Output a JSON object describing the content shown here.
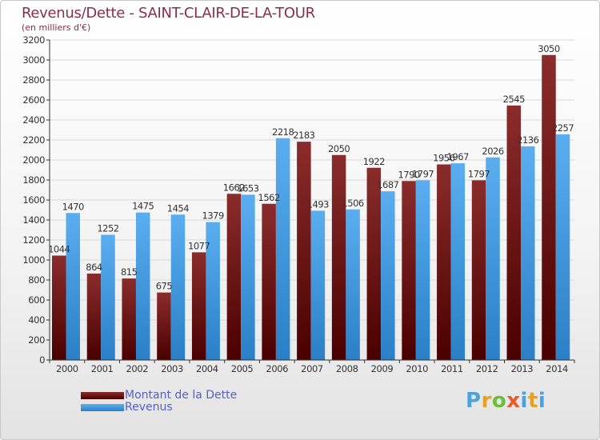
{
  "header": {
    "title": "Revenus/Dette - SAINT-CLAIR-DE-LA-TOUR",
    "subtitle": "(en milliers d'€)"
  },
  "legend": {
    "items": [
      {
        "label": "Montant de la Dette",
        "color": "#7a1a1e"
      },
      {
        "label": "Revenus",
        "color": "#3d8fd6"
      }
    ]
  },
  "logo": {
    "text": "Proxiti"
  },
  "colors": {
    "dette_top": "#8b2c2c",
    "dette_bottom": "#4a0000",
    "revenus_top": "#5aaef0",
    "revenus_bottom": "#2a7fc6",
    "grid": "#d9d9d9",
    "title": "#8a2d4a"
  },
  "chart_data": {
    "type": "bar",
    "categories": [
      "2000",
      "2001",
      "2002",
      "2003",
      "2004",
      "2005",
      "2006",
      "2007",
      "2008",
      "2009",
      "2010",
      "2011",
      "2012",
      "2013",
      "2014"
    ],
    "series": [
      {
        "name": "Montant de la Dette",
        "values": [
          1044,
          864,
          815,
          675,
          1077,
          1662,
          1562,
          2183,
          2050,
          1922,
          1790,
          1956,
          1797,
          2545,
          3050
        ]
      },
      {
        "name": "Revenus",
        "values": [
          1470,
          1252,
          1475,
          1454,
          1379,
          1653,
          2218,
          1493,
          1506,
          1687,
          1797,
          1967,
          2026,
          2136,
          2257
        ]
      }
    ],
    "data_labels": {
      "Montant de la Dette": [
        "1044",
        "864",
        "815",
        "675",
        "1077",
        "1662",
        "1562",
        "2183",
        "2050",
        "1922",
        "1790",
        "1956",
        "1797",
        "2545",
        "3050"
      ],
      "Revenus": [
        "1470",
        "1252",
        "1475",
        "1454",
        "1379",
        "1653",
        "2218",
        "1493",
        "1506",
        "1687",
        "1797",
        "1967",
        "2026",
        "2136",
        "2257"
      ]
    },
    "title": "Revenus/Dette - SAINT-CLAIR-DE-LA-TOUR",
    "subtitle": "(en milliers d'€)",
    "xlabel": "",
    "ylabel": "",
    "ylim": [
      0,
      3200
    ],
    "yticks": [
      0,
      200,
      400,
      600,
      800,
      1000,
      1200,
      1400,
      1600,
      1800,
      2000,
      2200,
      2400,
      2600,
      2800,
      3000,
      3200
    ],
    "grid": true,
    "legend_position": "bottom-left"
  }
}
